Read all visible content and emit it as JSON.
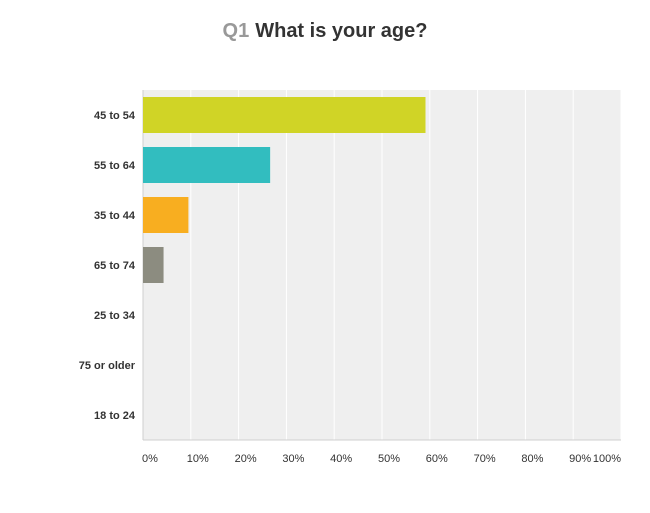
{
  "question": {
    "number": "Q1",
    "text": "What is your age?"
  },
  "chart_data": {
    "type": "bar",
    "orientation": "horizontal",
    "categories": [
      "45 to 54",
      "55 to 64",
      "35 to 44",
      "65 to 74",
      "25 to 34",
      "75 or older",
      "18 to 24"
    ],
    "values": [
      59.1,
      26.6,
      9.5,
      4.3,
      0,
      0,
      0
    ],
    "colors": [
      "#d0d426",
      "#32bdbf",
      "#f8ae20",
      "#8c8c80",
      "#d0d426",
      "#d0d426",
      "#d0d426"
    ],
    "value_unit": "%",
    "xlim": [
      0,
      100
    ],
    "xticks": [
      "0%",
      "10%",
      "20%",
      "30%",
      "40%",
      "50%",
      "60%",
      "70%",
      "80%",
      "90%",
      "100%"
    ],
    "grid": true,
    "plot_background": "#efefef",
    "title": "Q1 What is your age?"
  }
}
